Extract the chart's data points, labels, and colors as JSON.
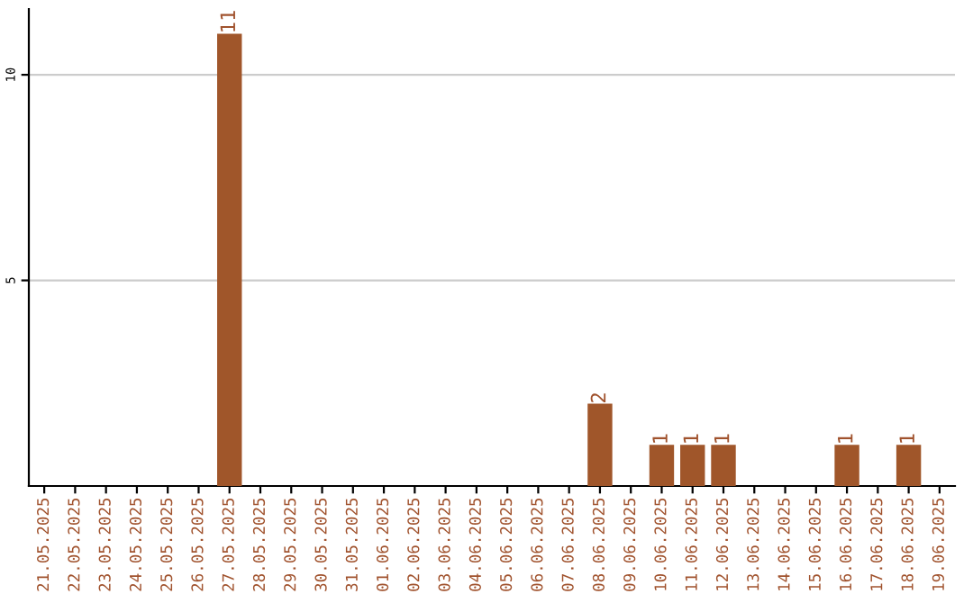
{
  "chart_data": {
    "type": "bar",
    "categories": [
      "21.05.2025",
      "22.05.2025",
      "23.05.2025",
      "24.05.2025",
      "25.05.2025",
      "26.05.2025",
      "27.05.2025",
      "28.05.2025",
      "29.05.2025",
      "30.05.2025",
      "31.05.2025",
      "01.06.2025",
      "02.06.2025",
      "03.06.2025",
      "04.06.2025",
      "05.06.2025",
      "06.06.2025",
      "07.06.2025",
      "08.06.2025",
      "09.06.2025",
      "10.06.2025",
      "11.06.2025",
      "12.06.2025",
      "13.06.2025",
      "14.06.2025",
      "15.06.2025",
      "16.06.2025",
      "17.06.2025",
      "18.06.2025",
      "19.06.2025"
    ],
    "values": [
      0,
      0,
      0,
      0,
      0,
      0,
      11,
      0,
      0,
      0,
      0,
      0,
      0,
      0,
      0,
      0,
      0,
      0,
      2,
      0,
      1,
      1,
      1,
      0,
      0,
      0,
      1,
      0,
      1,
      0
    ],
    "value_labels": [
      null,
      null,
      null,
      null,
      null,
      null,
      "11",
      null,
      null,
      null,
      null,
      null,
      null,
      null,
      null,
      null,
      null,
      null,
      "2",
      null,
      "1",
      "1",
      "1",
      null,
      null,
      null,
      "1",
      null,
      "1",
      null
    ],
    "color": "#a0562a",
    "ylim": [
      0,
      11.6
    ],
    "yticks": [
      5,
      10
    ],
    "grid": "y"
  }
}
